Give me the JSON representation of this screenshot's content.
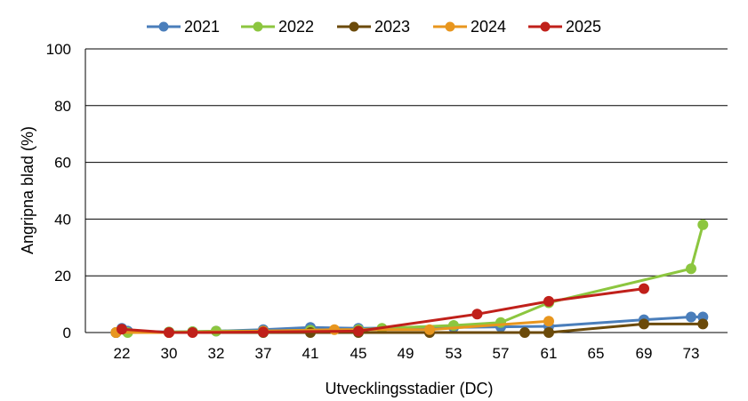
{
  "chart_data": {
    "type": "line",
    "title": "",
    "xlabel": "Utvecklingsstadier (DC)",
    "ylabel": "Angripna blad (%)",
    "ylim": [
      0,
      100
    ],
    "yticks": [
      0,
      20,
      40,
      60,
      80,
      100
    ],
    "x_categories": [
      "22",
      "30",
      "32",
      "37",
      "41",
      "45",
      "49",
      "53",
      "57",
      "61",
      "65",
      "69",
      "73"
    ],
    "grid": "horizontal",
    "legend_position": "top",
    "series": [
      {
        "name": "2021",
        "color": "#4a7ebb",
        "points": [
          {
            "x": 21.0,
            "y": 0.0
          },
          {
            "x": 22.0,
            "y": 1.5
          },
          {
            "x": 23.0,
            "y": 0.5
          },
          {
            "x": 30.0,
            "y": 0.2
          },
          {
            "x": 31.0,
            "y": 0.3
          },
          {
            "x": 32.0,
            "y": 0.5
          },
          {
            "x": 37.0,
            "y": 1.0
          },
          {
            "x": 41.0,
            "y": 1.8
          },
          {
            "x": 45.0,
            "y": 1.5
          },
          {
            "x": 53.0,
            "y": 1.8
          },
          {
            "x": 57.0,
            "y": 2.0
          },
          {
            "x": 61.0,
            "y": 2.2
          },
          {
            "x": 69.0,
            "y": 4.5
          },
          {
            "x": 73.0,
            "y": 5.5
          },
          {
            "x": 74.0,
            "y": 5.5
          }
        ]
      },
      {
        "name": "2022",
        "color": "#8cc63f",
        "points": [
          {
            "x": 21.0,
            "y": 0.0
          },
          {
            "x": 23.0,
            "y": 0.0
          },
          {
            "x": 30.0,
            "y": 0.2
          },
          {
            "x": 31.0,
            "y": 0.3
          },
          {
            "x": 32.0,
            "y": 0.5
          },
          {
            "x": 37.0,
            "y": 0.5
          },
          {
            "x": 41.0,
            "y": 0.8
          },
          {
            "x": 45.0,
            "y": 1.0
          },
          {
            "x": 47.0,
            "y": 1.5
          },
          {
            "x": 53.0,
            "y": 2.5
          },
          {
            "x": 57.0,
            "y": 3.5
          },
          {
            "x": 61.0,
            "y": 10.5
          },
          {
            "x": 73.0,
            "y": 22.5
          },
          {
            "x": 74.0,
            "y": 38.0
          }
        ]
      },
      {
        "name": "2023",
        "color": "#6b4a0a",
        "points": [
          {
            "x": 21.0,
            "y": 0.0
          },
          {
            "x": 30.0,
            "y": 0.0
          },
          {
            "x": 37.0,
            "y": 0.0
          },
          {
            "x": 41.0,
            "y": 0.0
          },
          {
            "x": 45.0,
            "y": 0.0
          },
          {
            "x": 51.0,
            "y": 0.0
          },
          {
            "x": 59.0,
            "y": 0.0
          },
          {
            "x": 61.0,
            "y": 0.0
          },
          {
            "x": 69.0,
            "y": 3.0
          },
          {
            "x": 74.0,
            "y": 3.0
          }
        ]
      },
      {
        "name": "2024",
        "color": "#e8961e",
        "points": [
          {
            "x": 21.0,
            "y": 0.0
          },
          {
            "x": 30.0,
            "y": 0.0
          },
          {
            "x": 37.0,
            "y": 0.5
          },
          {
            "x": 43.0,
            "y": 1.0
          },
          {
            "x": 51.0,
            "y": 1.0
          },
          {
            "x": 61.0,
            "y": 4.0
          }
        ]
      },
      {
        "name": "2025",
        "color": "#c0201a",
        "points": [
          {
            "x": 22.0,
            "y": 1.2
          },
          {
            "x": 30.0,
            "y": 0.0
          },
          {
            "x": 31.0,
            "y": 0.0
          },
          {
            "x": 37.0,
            "y": 0.2
          },
          {
            "x": 45.0,
            "y": 0.5
          },
          {
            "x": 55.0,
            "y": 6.5
          },
          {
            "x": 61.0,
            "y": 11.0
          },
          {
            "x": 69.0,
            "y": 15.5
          }
        ]
      }
    ]
  }
}
